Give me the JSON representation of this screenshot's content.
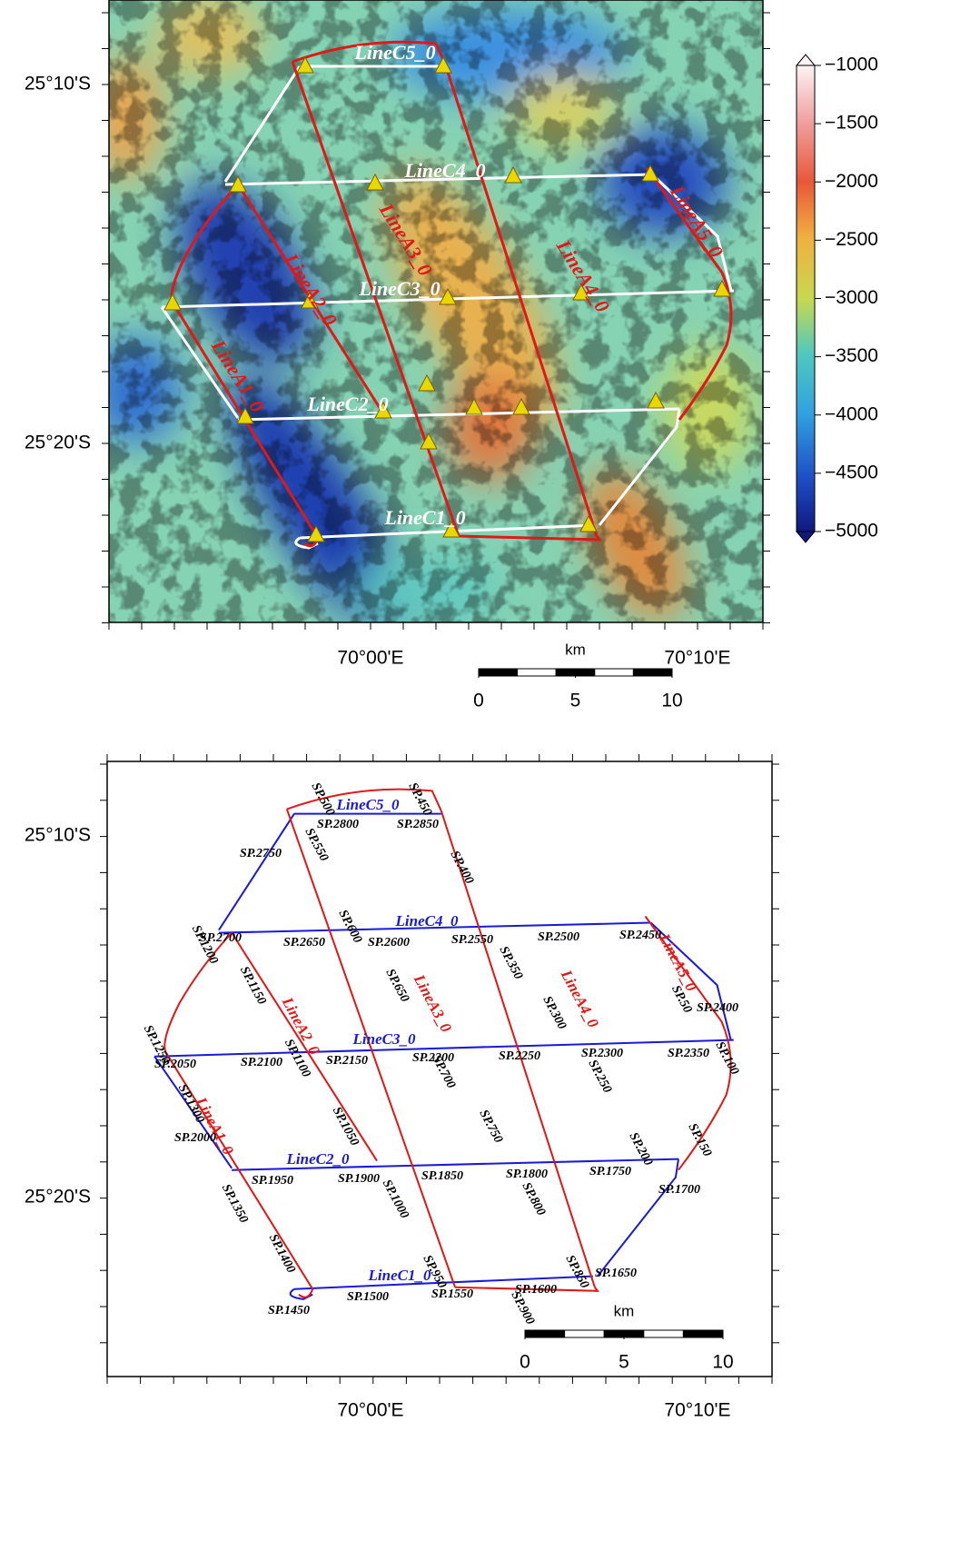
{
  "top_map": {
    "lat_labels": [
      "25°10'S",
      "25°20'S"
    ],
    "lon_labels": [
      "70°00'E",
      "70°10'E"
    ],
    "line_labels": [
      "LineC5_0",
      "LineC4_0",
      "LineC3_0",
      "LineC2_0",
      "LineC1_0",
      "LineA1_0",
      "LineA2_0",
      "LineA3_0",
      "LineA4_0",
      "LineA5_0"
    ],
    "colorbar": {
      "ticks": [
        {
          "value": -1000,
          "label": "−1000"
        },
        {
          "value": -1500,
          "label": "−1500"
        },
        {
          "value": -2000,
          "label": "−2000"
        },
        {
          "value": -2500,
          "label": "−2500"
        },
        {
          "value": -3000,
          "label": "−3000"
        },
        {
          "value": -3500,
          "label": "−3500"
        },
        {
          "value": -4000,
          "label": "−4000"
        },
        {
          "value": -4500,
          "label": "−4500"
        },
        {
          "value": -5000,
          "label": "−5000"
        }
      ]
    },
    "scale_bar": {
      "unit": "km",
      "ticks": [
        0,
        5,
        10
      ]
    }
  },
  "bottom_map": {
    "lat_labels": [
      "25°10'S",
      "25°20'S"
    ],
    "lon_labels": [
      "70°00'E",
      "70°10'E"
    ],
    "line_labels": [
      "LineC5_0",
      "LineC4_0",
      "LineC3_0",
      "LineC2_0",
      "LineC1_0",
      "LineA1_0",
      "LineA2_0",
      "LineA3_0",
      "LineA4_0",
      "LineA5_0"
    ],
    "sp_labels": [
      "SP.2800",
      "SP.2850",
      "SP.2750",
      "SP.2700",
      "SP.2650",
      "SP.2600",
      "SP.2550",
      "SP.2500",
      "SP.2450",
      "SP.2400",
      "SP.2050",
      "SP.2100",
      "SP.2150",
      "SP.2200",
      "SP.2250",
      "SP.2300",
      "SP.2350",
      "SP.2000",
      "SP.1950",
      "SP.1900",
      "SP.1850",
      "SP.1800",
      "SP.1750",
      "SP.1700",
      "SP.1650",
      "SP.1450",
      "SP.1500",
      "SP.1550",
      "SP.1600",
      "SP.500",
      "SP.450",
      "SP.550",
      "SP.400",
      "SP.600",
      "SP.350",
      "SP.1200",
      "SP.650",
      "SP.1150",
      "SP.300",
      "SP.1250",
      "SP.1100",
      "SP.700",
      "SP.250",
      "SP.1300",
      "SP.1050",
      "SP.750",
      "SP.200",
      "SP.1350",
      "SP.1000",
      "SP.800",
      "SP.150",
      "SP.100",
      "SP.50",
      "SP.1400",
      "SP.850",
      "SP.900",
      "SP.950"
    ],
    "scale_bar": {
      "unit": "km",
      "ticks": [
        0,
        5,
        10
      ]
    }
  }
}
